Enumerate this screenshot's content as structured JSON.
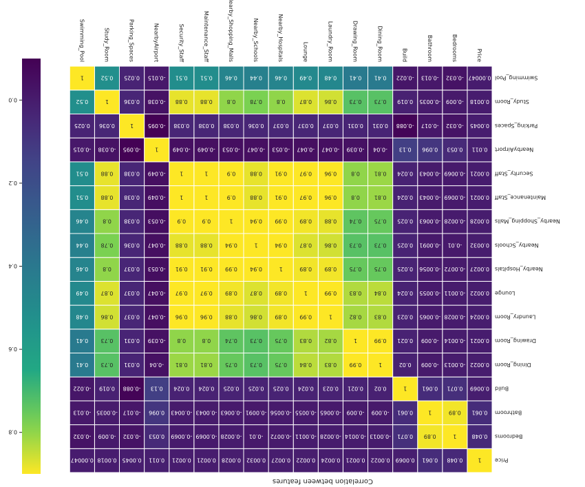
{
  "chart_data": {
    "type": "heatmap",
    "title": "Correlation between features",
    "labels": [
      "Price",
      "Bedrooms",
      "Bathroom",
      "Build",
      "Dining_Room",
      "Drawing_Room",
      "Laundry_Room",
      "Lounge",
      "Nearby_Hospitals",
      "Nearby_Schools",
      "Nearby_Shopping_Malls",
      "Maintenance_Staff",
      "Security_Staff",
      "NearbyAirport",
      "Parking_Spaces",
      "Study_Room",
      "Swimming_Pool"
    ],
    "rows": [
      [
        "1",
        "0.048",
        "0.061",
        "0.0069",
        "0.0022",
        "0.0021",
        "0.0024",
        "0.0022",
        "0.0027",
        "0.0032",
        "0.0028",
        "0.0021",
        "0.0021",
        "0.011",
        "0.0045",
        "0.0018",
        "0.00047"
      ],
      [
        "0.048",
        "1",
        "0.89",
        "0.071",
        "-0.0013",
        "-0.0014",
        "-0.0028",
        "-0.0011",
        "-0.0072",
        "-0.01",
        "-0.0028",
        "-0.0069",
        "-0.0069",
        "0.053",
        "-0.032",
        "-0.009",
        "-0.032"
      ],
      [
        "0.061",
        "0.89",
        "1",
        "0.061",
        "-0.009",
        "-0.009",
        "-0.0065",
        "-0.0055",
        "-0.0056",
        "-0.0091",
        "-0.0063",
        "-0.0043",
        "-0.0043",
        "0.096",
        "-0.017",
        "-0.0035",
        "-0.013"
      ],
      [
        "0.0069",
        "0.071",
        "0.061",
        "1",
        "0.02",
        "0.021",
        "0.023",
        "0.024",
        "0.025",
        "0.025",
        "0.025",
        "0.024",
        "0.024",
        "0.13",
        "-0.088",
        "0.019",
        "-0.022"
      ],
      [
        "0.0022",
        "-0.0013",
        "-0.009",
        "0.02",
        "1",
        "0.99",
        "0.83",
        "0.84",
        "0.75",
        "0.73",
        "0.75",
        "0.81",
        "0.81",
        "-0.04",
        "0.031",
        "0.73",
        "0.41"
      ],
      [
        "0.0021",
        "-0.0014",
        "-0.009",
        "0.021",
        "0.99",
        "1",
        "0.82",
        "0.83",
        "0.75",
        "0.73",
        "0.74",
        "0.8",
        "0.8",
        "-0.039",
        "0.031",
        "0.73",
        "0.41"
      ],
      [
        "0.0024",
        "-0.0028",
        "-0.0065",
        "0.023",
        "0.83",
        "0.82",
        "1",
        "0.99",
        "0.89",
        "0.86",
        "0.88",
        "0.96",
        "0.96",
        "-0.047",
        "0.037",
        "0.86",
        "0.48"
      ],
      [
        "0.0022",
        "-0.0011",
        "-0.0055",
        "0.024",
        "0.84",
        "0.83",
        "0.99",
        "1",
        "0.89",
        "0.87",
        "0.89",
        "0.97",
        "0.97",
        "-0.047",
        "0.037",
        "0.87",
        "0.49"
      ],
      [
        "0.0027",
        "-0.0072",
        "-0.0056",
        "0.025",
        "0.75",
        "0.75",
        "0.89",
        "0.89",
        "1",
        "0.94",
        "0.99",
        "0.91",
        "0.91",
        "-0.053",
        "0.037",
        "0.8",
        "0.46"
      ],
      [
        "0.0032",
        "-0.01",
        "-0.0091",
        "0.025",
        "0.73",
        "0.73",
        "0.86",
        "0.87",
        "0.94",
        "1",
        "0.94",
        "0.88",
        "0.88",
        "-0.047",
        "0.036",
        "0.78",
        "0.44"
      ],
      [
        "0.0028",
        "-0.0028",
        "-0.0063",
        "0.025",
        "0.75",
        "0.74",
        "0.88",
        "0.89",
        "0.99",
        "0.94",
        "1",
        "0.9",
        "0.9",
        "-0.053",
        "0.038",
        "0.8",
        "0.46"
      ],
      [
        "0.0021",
        "-0.0069",
        "-0.0043",
        "0.024",
        "0.81",
        "0.8",
        "0.96",
        "0.97",
        "0.91",
        "0.88",
        "0.9",
        "1",
        "1",
        "-0.049",
        "0.038",
        "0.88",
        "0.51"
      ],
      [
        "0.0021",
        "-0.0069",
        "-0.0043",
        "0.024",
        "0.81",
        "0.8",
        "0.96",
        "0.97",
        "0.91",
        "0.88",
        "0.9",
        "1",
        "1",
        "-0.049",
        "0.038",
        "0.88",
        "0.51"
      ],
      [
        "0.011",
        "0.053",
        "0.096",
        "0.13",
        "-0.04",
        "-0.039",
        "-0.047",
        "-0.047",
        "-0.053",
        "-0.047",
        "-0.053",
        "-0.049",
        "-0.049",
        "1",
        "-0.095",
        "-0.038",
        "-0.015"
      ],
      [
        "0.0045",
        "-0.032",
        "-0.017",
        "-0.088",
        "0.031",
        "0.031",
        "0.037",
        "0.037",
        "0.037",
        "0.036",
        "0.038",
        "0.038",
        "0.038",
        "-0.095",
        "1",
        "0.036",
        "0.025"
      ],
      [
        "0.0018",
        "-0.009",
        "-0.0035",
        "0.019",
        "0.73",
        "0.73",
        "0.86",
        "0.87",
        "0.8",
        "0.78",
        "0.8",
        "0.88",
        "0.88",
        "-0.038",
        "0.036",
        "1",
        "0.52"
      ],
      [
        "0.00047",
        "-0.032",
        "-0.013",
        "-0.022",
        "0.41",
        "0.41",
        "0.48",
        "0.49",
        "0.46",
        "0.44",
        "0.46",
        "0.51",
        "0.51",
        "-0.015",
        "0.025",
        "0.52",
        "1"
      ]
    ],
    "colorbar": {
      "ticks": [
        "0.0",
        "0.2",
        "0.4",
        "0.6",
        "0.8"
      ],
      "range": [
        -0.1,
        0.9
      ]
    },
    "colormap": "viridis",
    "orientation": "rotated 180 degrees"
  }
}
